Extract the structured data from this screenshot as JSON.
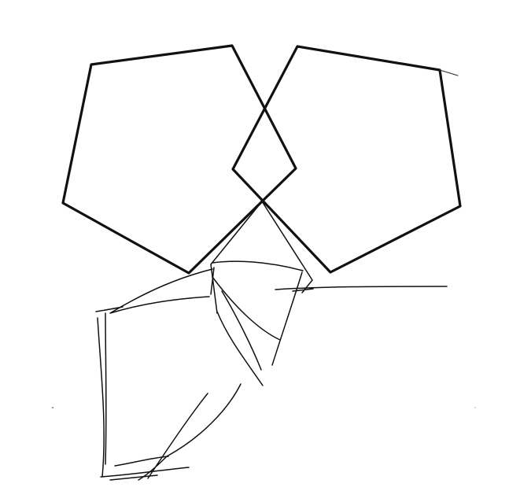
{
  "canvas": {
    "background": "#ffffff",
    "ink_color": "#111111",
    "faint_ink_color": "#2a2a2a"
  },
  "shapes": {
    "left_pentagon": {
      "kind": "pentagon",
      "style": "bold outline"
    },
    "right_pentagon": {
      "kind": "pentagon",
      "style": "bold outline"
    },
    "overlap_diamond": {
      "kind": "diamond",
      "style": "bold outline"
    },
    "sketch": {
      "kind": "freehand sketch",
      "style": "thin strokes"
    }
  }
}
